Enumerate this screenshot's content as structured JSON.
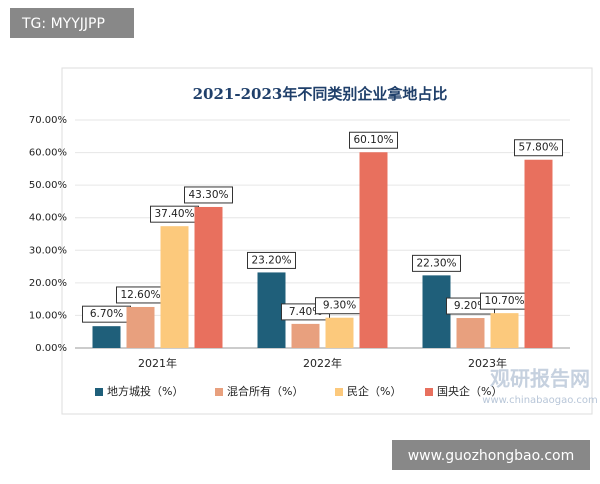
{
  "header_tag": "TG: MYYJJPP",
  "watermark": {
    "brand": "观研报告网",
    "url": "www.chinabaogao.com"
  },
  "footer_tag": "www.guozhongbao.com",
  "chart_data": {
    "type": "bar",
    "title": "2021-2023年不同类别企业拿地占比",
    "categories": [
      "2021年",
      "2022年",
      "2023年"
    ],
    "series": [
      {
        "name": "地方城投（%）",
        "color": "#1f5f7a",
        "values": [
          6.7,
          23.2,
          22.3
        ],
        "value_labels": [
          "6.70%",
          "23.20%",
          "22.30%"
        ]
      },
      {
        "name": "混合所有（%）",
        "color": "#e8a07e",
        "values": [
          12.6,
          7.4,
          9.2
        ],
        "value_labels": [
          "12.60%",
          "7.40%",
          "9.20%"
        ]
      },
      {
        "name": "民企（%）",
        "color": "#fcc97c",
        "values": [
          37.4,
          9.3,
          10.7
        ],
        "value_labels": [
          "37.40%",
          "9.30%",
          "10.70%"
        ]
      },
      {
        "name": "国央企（%）",
        "color": "#e8705e",
        "values": [
          43.3,
          60.1,
          57.8
        ],
        "value_labels": [
          "43.30%",
          "60.10%",
          "57.80%"
        ]
      }
    ],
    "ylim": [
      0,
      70
    ],
    "yticks": [
      {
        "value": 0,
        "label": "0.00%"
      },
      {
        "value": 10,
        "label": "10.00%"
      },
      {
        "value": 20,
        "label": "20.00%"
      },
      {
        "value": 30,
        "label": "30.00%"
      },
      {
        "value": 40,
        "label": "40.00%"
      },
      {
        "value": 50,
        "label": "50.00%"
      },
      {
        "value": 60,
        "label": "60.00%"
      },
      {
        "value": 70,
        "label": "70.00%"
      }
    ],
    "grid": true,
    "legend": "bottom"
  }
}
